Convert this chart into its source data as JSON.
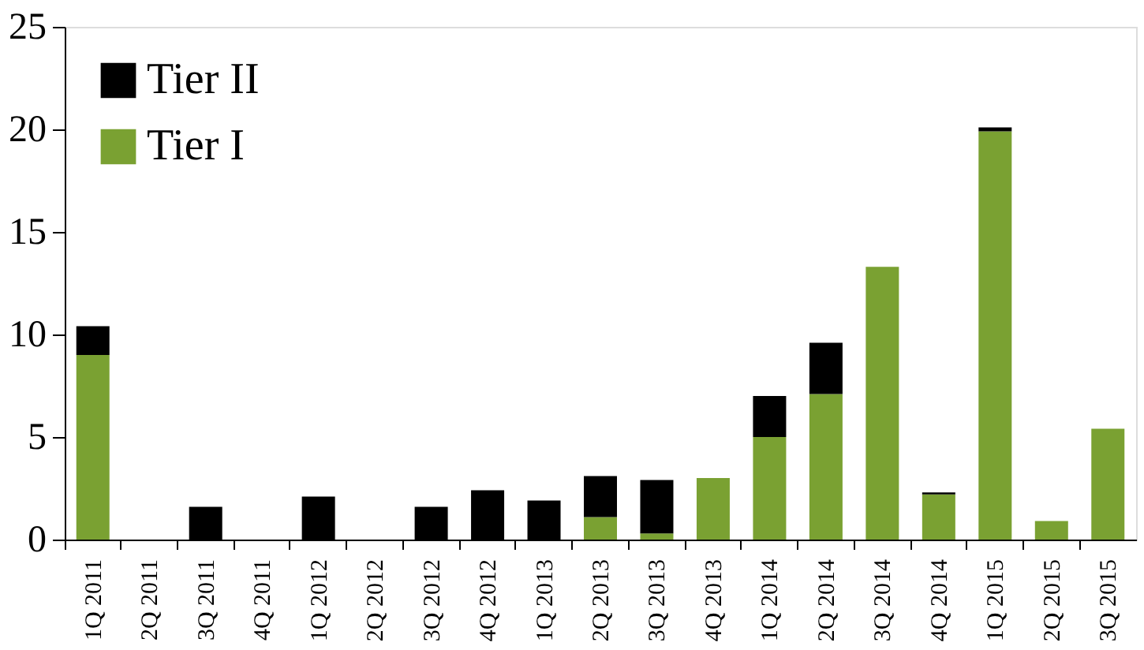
{
  "chart_data": {
    "type": "bar",
    "stacked": true,
    "categories": [
      "1Q 2011",
      "2Q 2011",
      "3Q 2011",
      "4Q 2011",
      "1Q 2012",
      "2Q 2012",
      "3Q 2012",
      "4Q 2012",
      "1Q 2013",
      "2Q 2013",
      "3Q 2013",
      "4Q 2013",
      "1Q 2014",
      "2Q 2014",
      "3Q 2014",
      "4Q 2014",
      "1Q 2015",
      "2Q 2015",
      "3Q 2015"
    ],
    "series": [
      {
        "name": "Tier I",
        "color": "#7aa132",
        "values": [
          9.0,
          0,
          0,
          0,
          0,
          0,
          0,
          0,
          0,
          1.1,
          0.3,
          3.0,
          5.0,
          7.1,
          13.3,
          2.2,
          19.9,
          0.9,
          5.4
        ]
      },
      {
        "name": "Tier II",
        "color": "#000000",
        "values": [
          1.4,
          0,
          1.6,
          0,
          2.1,
          0,
          1.6,
          2.4,
          1.9,
          2.0,
          2.6,
          0,
          2.0,
          2.5,
          0,
          0.1,
          0.2,
          0,
          0
        ]
      }
    ],
    "ylim": [
      0,
      25
    ],
    "yticks": [
      0,
      5,
      10,
      15,
      20,
      25
    ],
    "grid": false,
    "legend": "top left"
  }
}
